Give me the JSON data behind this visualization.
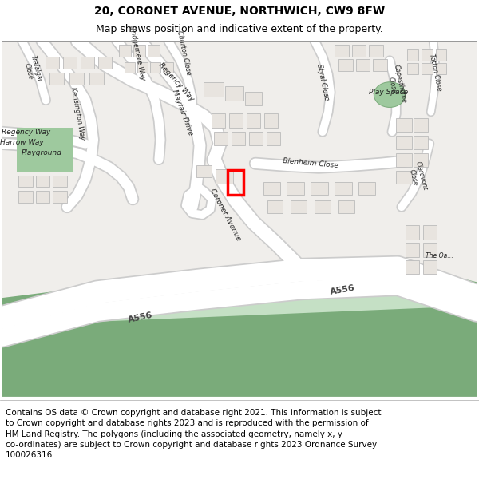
{
  "title_line1": "20, CORONET AVENUE, NORTHWICH, CW9 8FW",
  "title_line2": "Map shows position and indicative extent of the property.",
  "footer_text": "Contains OS data © Crown copyright and database right 2021. This information is subject\nto Crown copyright and database rights 2023 and is reproduced with the permission of\nHM Land Registry. The polygons (including the associated geometry, namely x, y\nco-ordinates) are subject to Crown copyright and database rights 2023 Ordnance Survey\n100026316.",
  "map_bg": "#f0eeeb",
  "road_fill": "#ffffff",
  "road_outline": "#cccccc",
  "building_fill": "#e8e4df",
  "building_edge": "#bbbbbb",
  "green_dark": "#7aab7a",
  "green_light": "#c5e0c5",
  "red_box": "#ff0000",
  "title_fs": 10,
  "subtitle_fs": 9,
  "footer_fs": 7.5
}
